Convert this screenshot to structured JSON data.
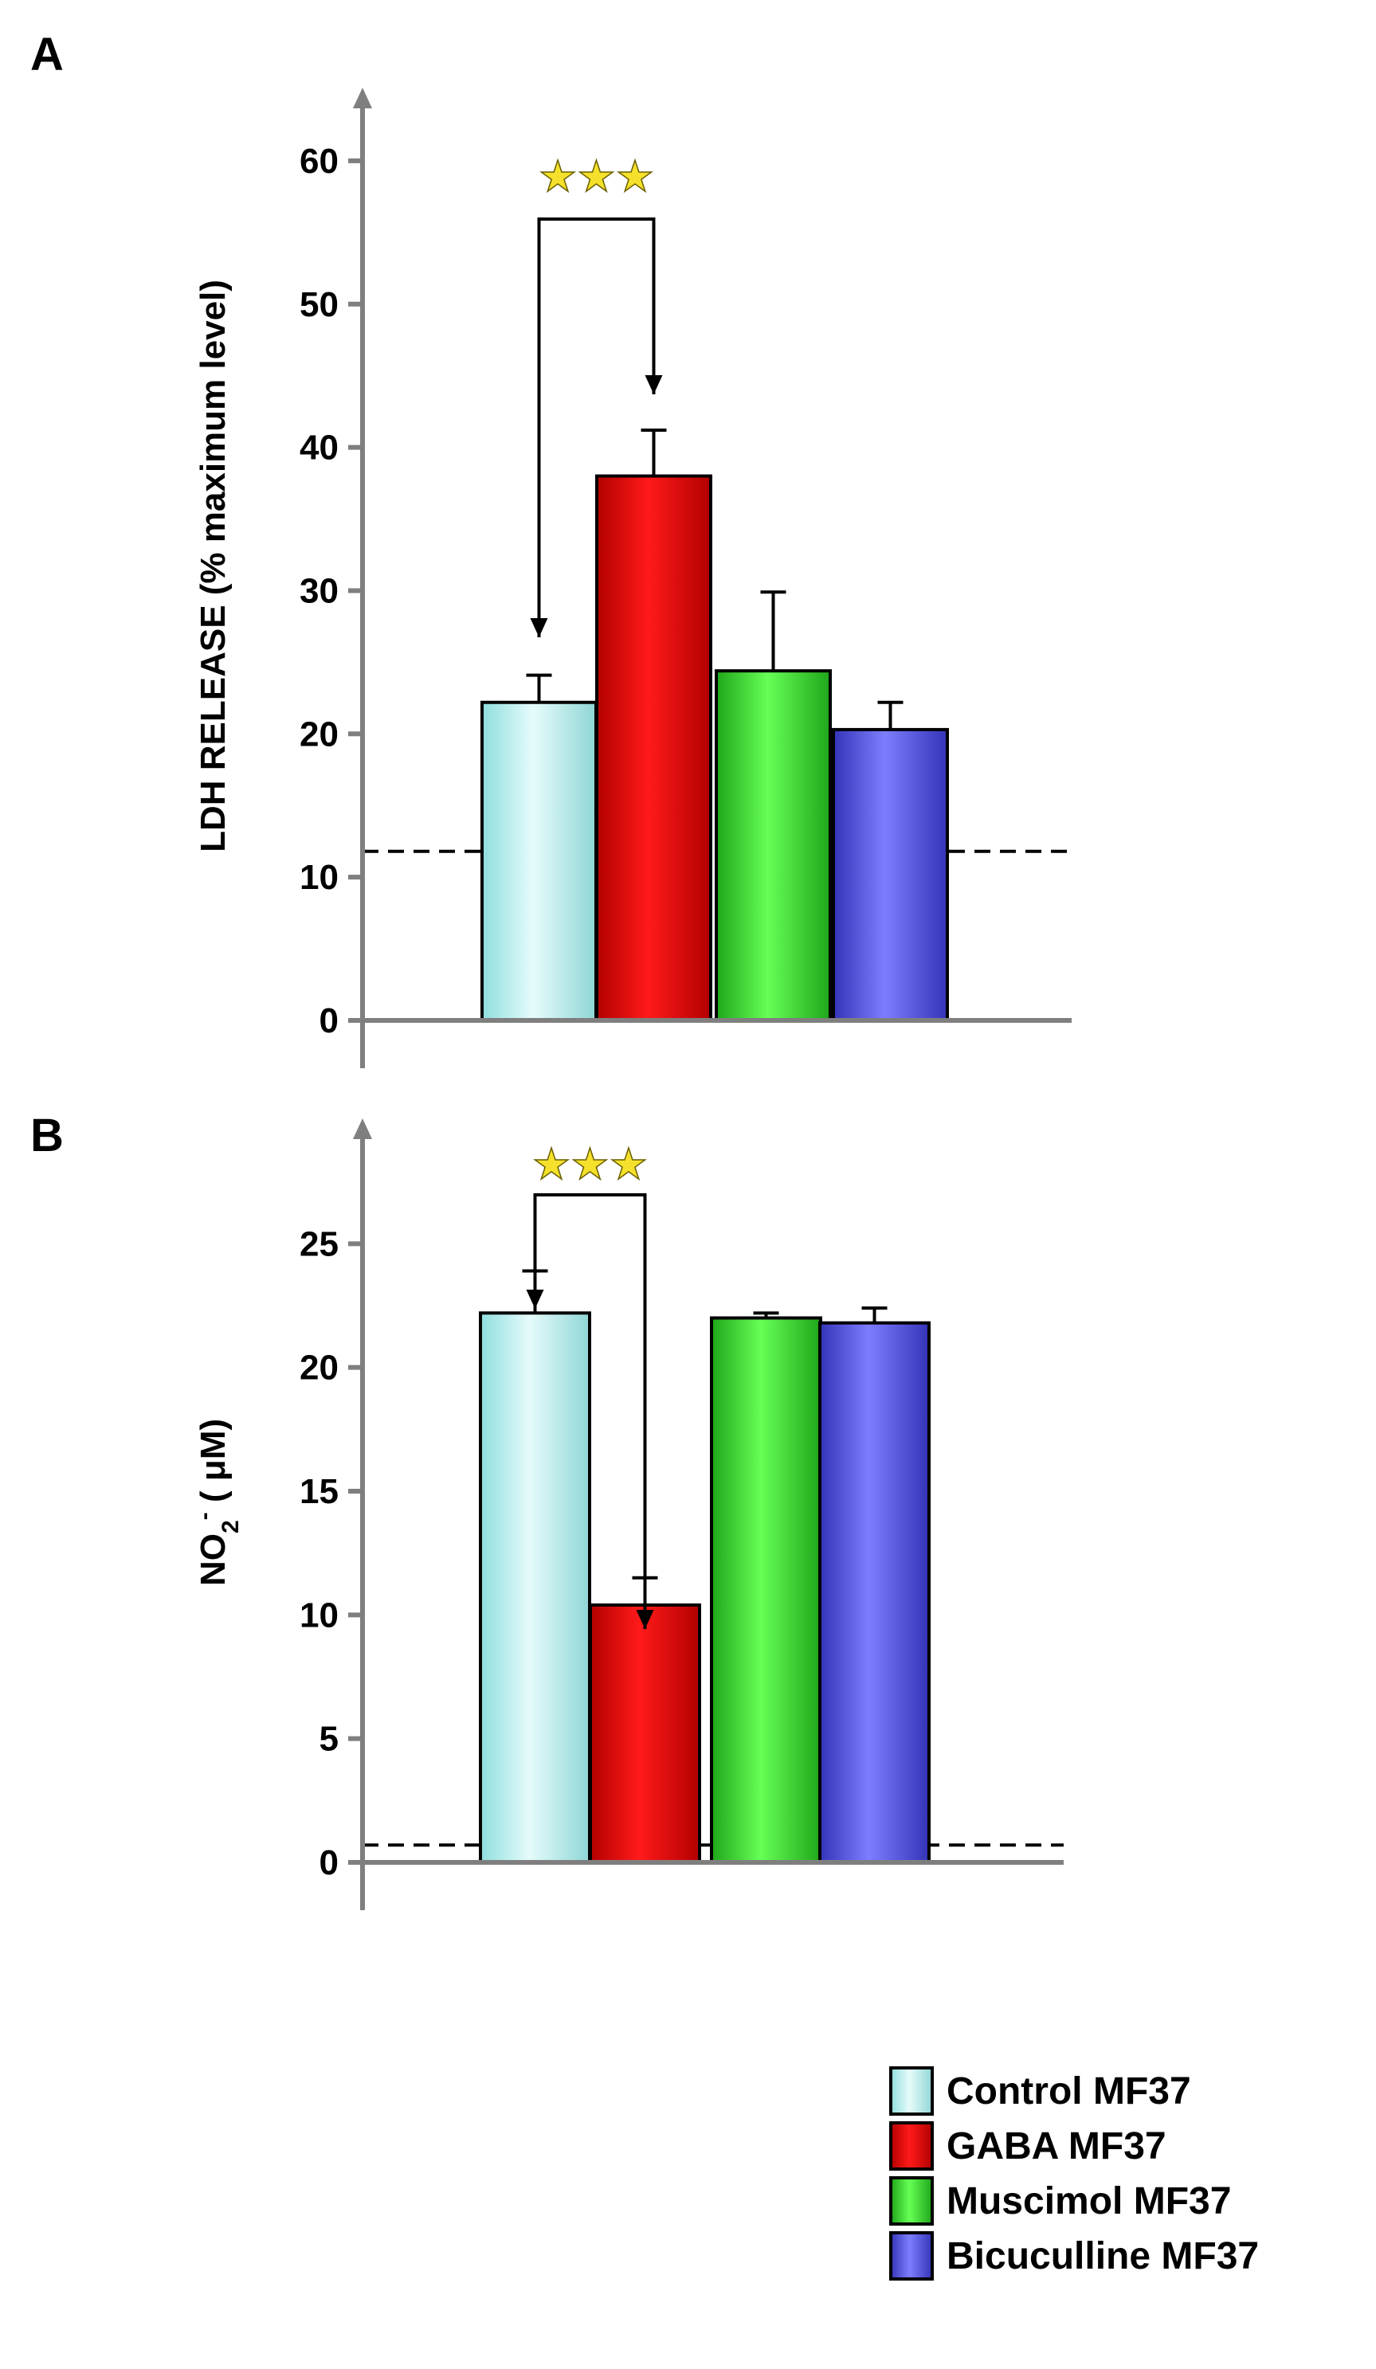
{
  "chart_data": [
    {
      "type": "bar",
      "panel": "A",
      "ylabel": "LDH RELEASE (% maximum level)",
      "xlabel": "",
      "ylim": [
        0,
        65
      ],
      "yticks": [
        "0",
        "10",
        "20",
        "30",
        "40",
        "50",
        "60"
      ],
      "categories": [
        "Control MF37",
        "GABA MF37",
        "Muscimol MF37",
        "Bicuculline MF37"
      ],
      "values": [
        22.2,
        38.0,
        24.4,
        20.3
      ],
      "errors": [
        1.9,
        3.2,
        5.5,
        1.9
      ],
      "reference_line": 11.8,
      "significance": {
        "label": "★★★",
        "from": 0,
        "to": 1
      }
    },
    {
      "type": "bar",
      "panel": "B",
      "ylabel": "NO2- ( μM)",
      "ylabel_parts": {
        "base": "NO",
        "sub": "2",
        "sup": "-",
        "rest": " ( μM)"
      },
      "xlabel": "",
      "ylim": [
        0,
        30
      ],
      "yticks": [
        "0",
        "5",
        "10",
        "15",
        "20",
        "25"
      ],
      "categories": [
        "Control MF37",
        "GABA MF37",
        "Muscimol MF37",
        "Bicuculline MF37"
      ],
      "values": [
        22.2,
        10.4,
        22.0,
        21.8
      ],
      "errors": [
        1.7,
        1.1,
        0.2,
        0.6
      ],
      "reference_line": 0.7,
      "significance": {
        "label": "★★★",
        "from": 0,
        "to": 1
      }
    }
  ],
  "legend": {
    "items": [
      {
        "label": "Control MF37",
        "color": "#c3f2f4"
      },
      {
        "label": "GABA MF37",
        "color": "#ff0a0a"
      },
      {
        "label": "Muscimol MF37",
        "color": "#3cf032"
      },
      {
        "label": "Bicuculline MF37",
        "color": "#5b5bf5"
      }
    ]
  },
  "colors": {
    "axis": "#7f7f7f",
    "bar_outline": "#000000",
    "reference_line": "#000000"
  }
}
